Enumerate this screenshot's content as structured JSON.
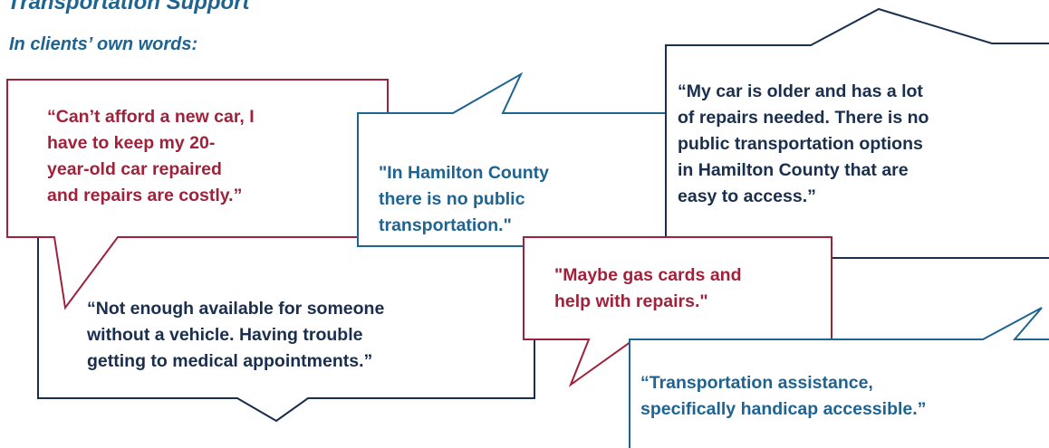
{
  "header": {
    "title": "Transportation Support",
    "subtitle": "In clients’ own words:"
  },
  "quotes": [
    {
      "lines": [
        "“Not enough available for someone",
        "without a vehicle. Having trouble",
        "getting to medical appointments.”"
      ]
    },
    {
      "lines": [
        "“Can’t afford a new car, I",
        "have to keep my 20-",
        "year-old car repaired",
        "and repairs are costly.”"
      ]
    },
    {
      "lines": [
        "\"In Hamilton County",
        "there is no public",
        "transportation.\""
      ]
    },
    {
      "lines": [
        "“My car is older and has a lot",
        "of repairs needed. There is no",
        "public transportation options",
        "in Hamilton County that are",
        "easy to access.”"
      ]
    },
    {
      "lines": [
        "\"Maybe gas cards and",
        "help with repairs.\""
      ]
    },
    {
      "lines": [
        "“Transportation assistance,",
        "specifically handicap accessible.”"
      ]
    }
  ]
}
